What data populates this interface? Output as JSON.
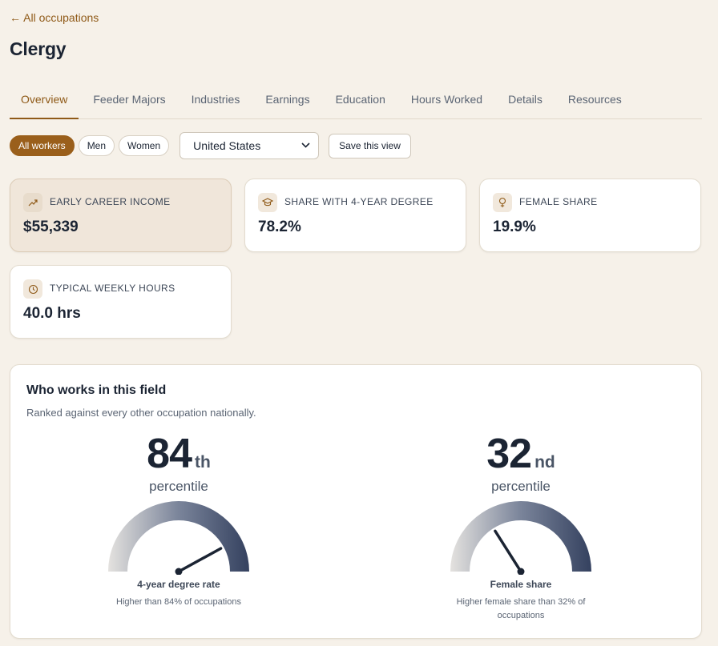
{
  "nav": {
    "back_label": "← All occupations"
  },
  "page": {
    "title": "Clergy"
  },
  "tabs": [
    {
      "label": "Overview",
      "active": true
    },
    {
      "label": "Feeder Majors"
    },
    {
      "label": "Industries"
    },
    {
      "label": "Earnings"
    },
    {
      "label": "Education"
    },
    {
      "label": "Hours Worked"
    },
    {
      "label": "Details"
    },
    {
      "label": "Resources"
    }
  ],
  "filters": {
    "pills": [
      {
        "label": "All workers",
        "active": true
      },
      {
        "label": "Men"
      },
      {
        "label": "Women"
      }
    ],
    "region_selected": "United States",
    "save_label": "Save this view"
  },
  "cards": [
    {
      "label": "Early career income",
      "value": "$55,339",
      "icon": "trending-up-icon",
      "highlight": true
    },
    {
      "label": "Share with 4-year degree",
      "value": "78.2%",
      "icon": "graduation-cap-icon"
    },
    {
      "label": "Female share",
      "value": "19.9%",
      "icon": "female-icon"
    },
    {
      "label": "Typical weekly hours",
      "value": "40.0 hrs",
      "icon": "clock-icon"
    }
  ],
  "panel": {
    "title": "Who works in this field",
    "subtitle": "Ranked against every other occupation nationally.",
    "gauges": [
      {
        "number": "84",
        "suffix": "th",
        "percentile_label": "percentile",
        "value": 84,
        "label": "4-year degree rate",
        "description": "Higher than 84% of occupations"
      },
      {
        "number": "32",
        "suffix": "nd",
        "percentile_label": "percentile",
        "value": 32,
        "label": "Female share",
        "description": "Higher female share than 32% of occupations"
      }
    ]
  },
  "colors": {
    "accent": "#9a5f1b",
    "gauge_light": "#e4e2df",
    "gauge_dark": "#34415f",
    "needle": "#1b2433"
  }
}
